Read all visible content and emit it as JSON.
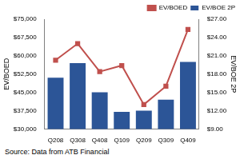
{
  "chart_data": {
    "type": "bar",
    "categories": [
      "Q208",
      "Q308",
      "Q408",
      "Q109",
      "Q209",
      "Q309",
      "Q409"
    ],
    "series": [
      {
        "name": "EV/BOE 2P",
        "type": "bar",
        "color": "#2c5597",
        "axis": "y2",
        "values": [
          17.4,
          19.8,
          15.0,
          11.8,
          12.0,
          13.8,
          20.0
        ]
      },
      {
        "name": "EV/BOED",
        "type": "line",
        "color": "#c0504d",
        "marker": "square",
        "values": [
          58200,
          65000,
          53500,
          56000,
          40000,
          47500,
          70800
        ]
      }
    ],
    "y_label": "EV/BOED",
    "y2_label": "EV/BOE 2P",
    "ylim": [
      30000,
      75000
    ],
    "yticks": [
      {
        "value": 30000,
        "label": "$30,000"
      },
      {
        "value": 37500,
        "label": "$37,500"
      },
      {
        "value": 45000,
        "label": "$45,000"
      },
      {
        "value": 52500,
        "label": "$52,500"
      },
      {
        "value": 60000,
        "label": "$60,000"
      },
      {
        "value": 67500,
        "label": "$67,500"
      },
      {
        "value": 75000,
        "label": "$75,000"
      }
    ],
    "y2lim": [
      9,
      27
    ],
    "y2ticks": [
      {
        "value": 9,
        "label": "$9.00"
      },
      {
        "value": 12,
        "label": "$12.00"
      },
      {
        "value": 15,
        "label": "$15.00"
      },
      {
        "value": 18,
        "label": "$18.00"
      },
      {
        "value": 21,
        "label": "$21.00"
      },
      {
        "value": 24,
        "label": "$24.00"
      },
      {
        "value": 27,
        "label": "$27.00"
      }
    ],
    "grid": false,
    "legend": "upper right",
    "annotations": [
      "Source: Data from ATB Financial"
    ]
  }
}
